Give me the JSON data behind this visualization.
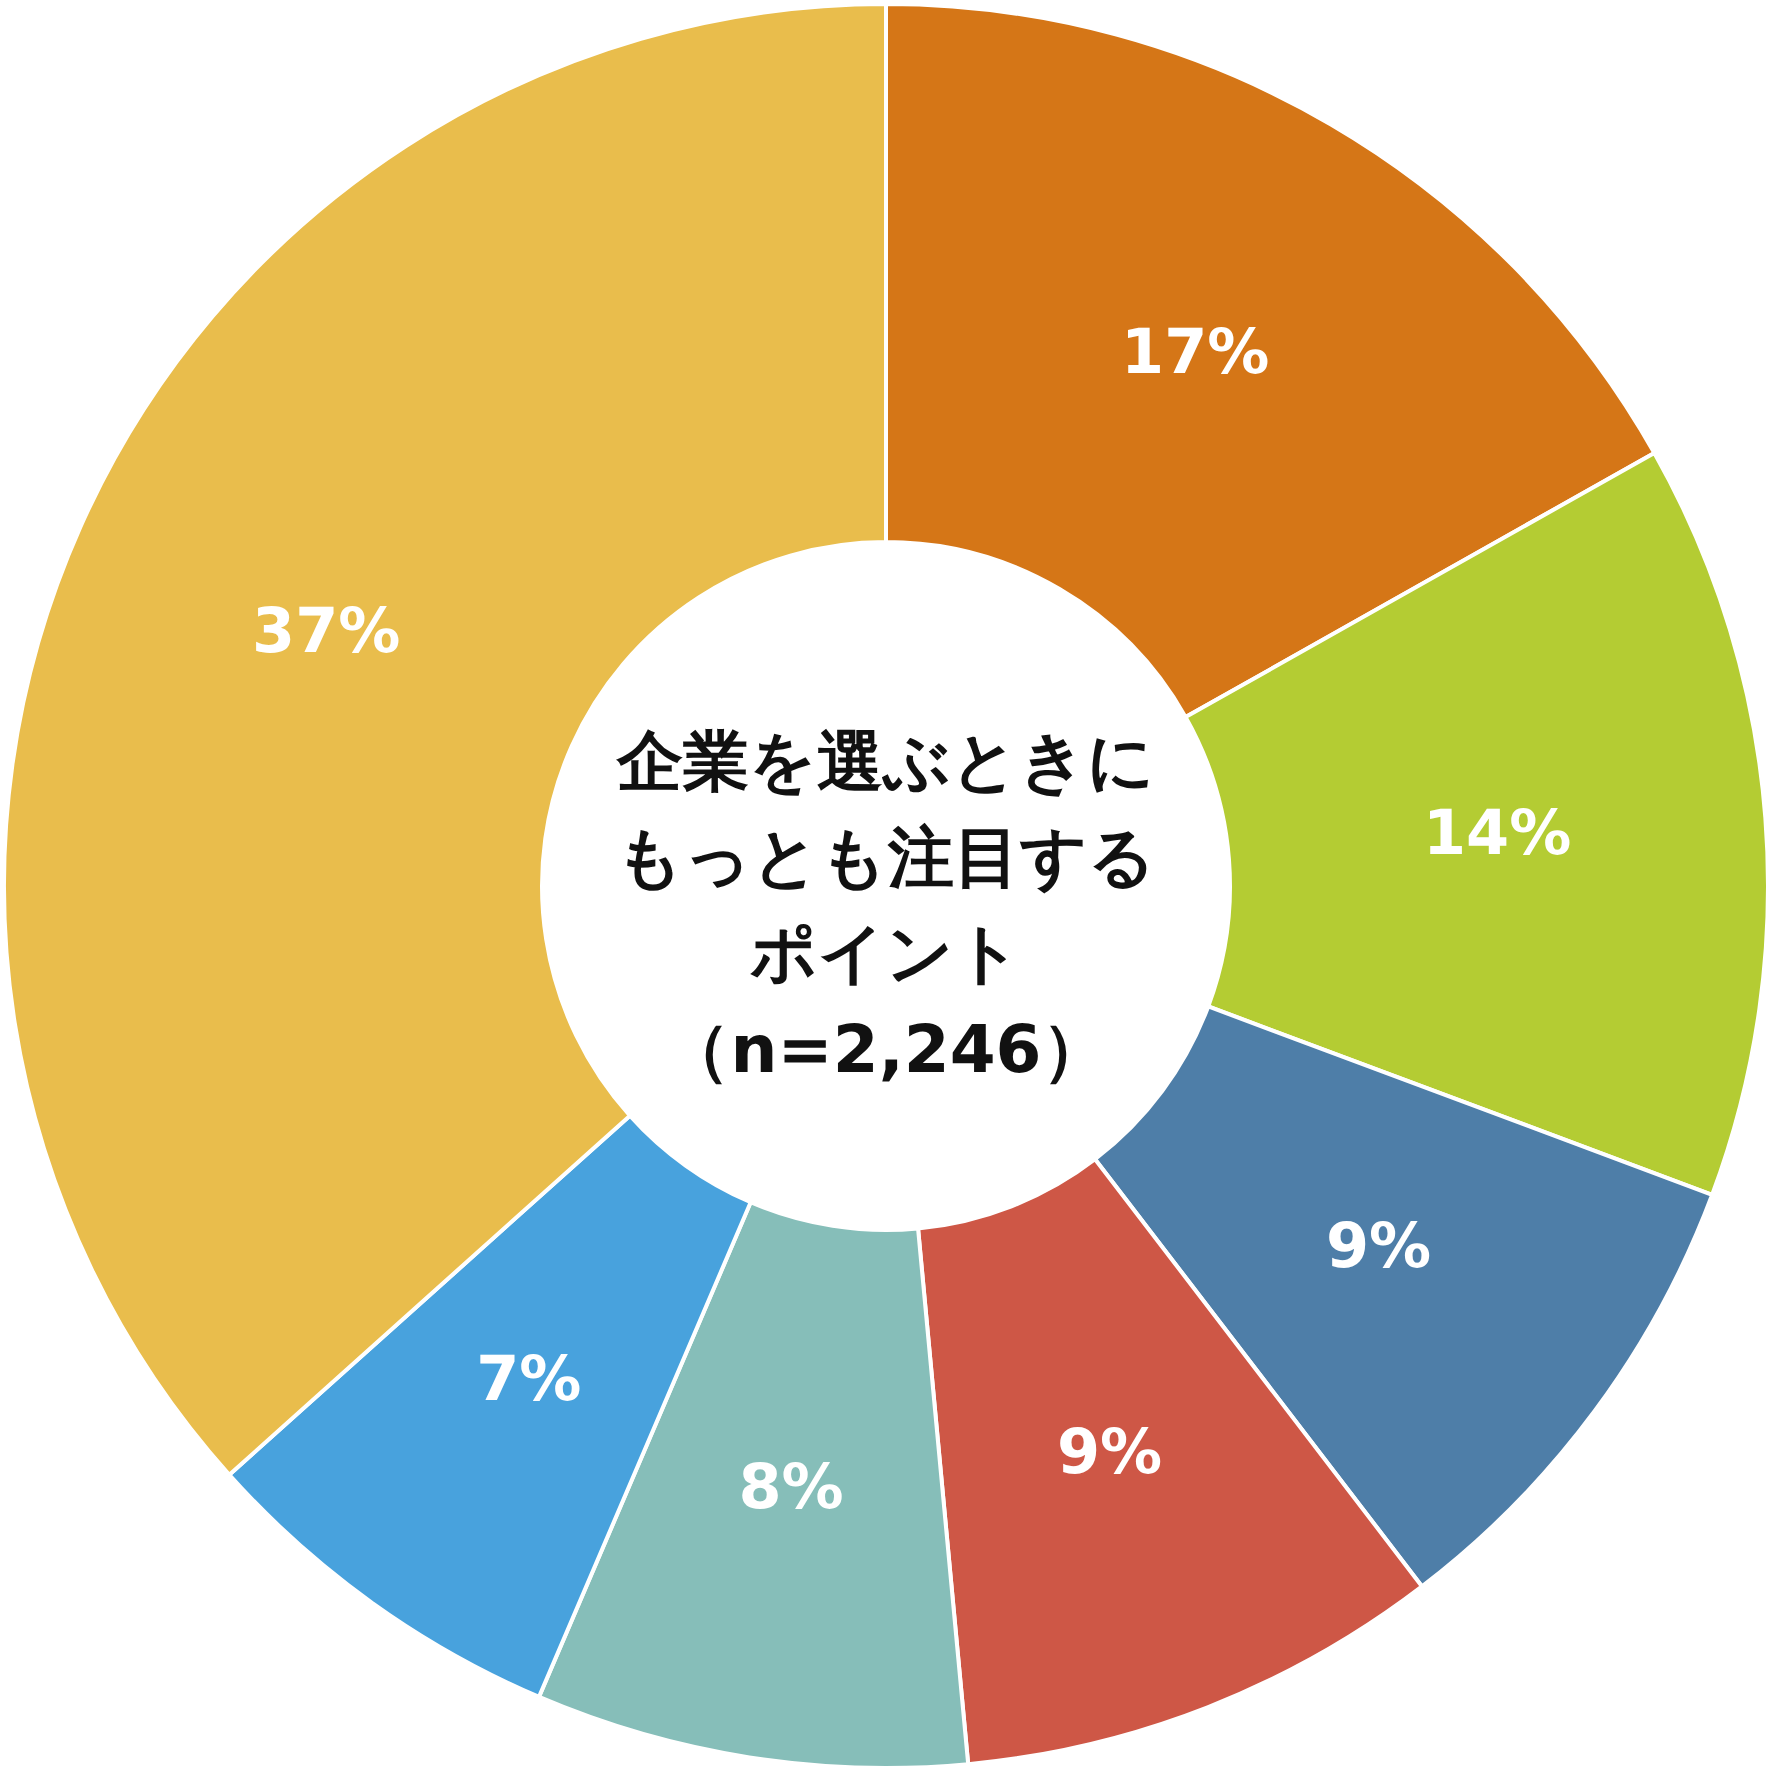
{
  "chart_data": {
    "type": "donut",
    "title": "企業を選ぶときにもっとも注目するポイント",
    "subtitle": "（n=2,246）",
    "categories": [
      null,
      null,
      null,
      null,
      null,
      null,
      null
    ],
    "values": [
      17,
      14,
      9,
      9,
      8,
      7,
      37
    ],
    "value_labels": [
      "17%",
      "14%",
      "9%",
      "9%",
      "8%",
      "7%",
      "37%"
    ],
    "colors": [
      "#d57617",
      "#b4cc33",
      "#4e7ea8",
      "#ce5746",
      "#86beb9",
      "#48a2dd",
      "#e9bd4c"
    ]
  }
}
